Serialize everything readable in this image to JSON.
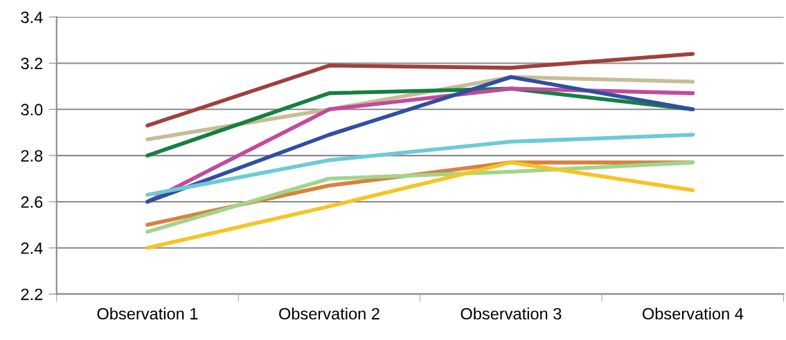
{
  "chart_data": {
    "type": "line",
    "categories": [
      "Observation 1",
      "Observation 2",
      "Observation 3",
      "Observation 4"
    ],
    "ylim": [
      2.2,
      3.4
    ],
    "yticks": [
      {
        "value": 2.2,
        "label": "2.2"
      },
      {
        "value": 2.4,
        "label": "2.4"
      },
      {
        "value": 2.6,
        "label": "2.6"
      },
      {
        "value": 2.8,
        "label": "2.8"
      },
      {
        "value": 3.0,
        "label": "3.0"
      },
      {
        "value": 3.2,
        "label": "3.2"
      },
      {
        "value": 3.4,
        "label": "3.4"
      }
    ],
    "grid": "y",
    "marker": "none",
    "line_style": "solid",
    "legend": false,
    "series": [
      {
        "color": "#a0403c",
        "values": [
          2.93,
          3.19,
          3.18,
          3.24
        ]
      },
      {
        "color": "#c6bd96",
        "values": [
          2.87,
          3.0,
          3.14,
          3.12
        ]
      },
      {
        "color": "#158040",
        "values": [
          2.8,
          3.07,
          3.09,
          3.0
        ]
      },
      {
        "color": "#c24a9c",
        "values": [
          2.6,
          3.0,
          3.09,
          3.07
        ]
      },
      {
        "color": "#2f4fa2",
        "values": [
          2.6,
          2.89,
          3.14,
          3.0
        ]
      },
      {
        "color": "#6ccad6",
        "values": [
          2.63,
          2.78,
          2.86,
          2.89
        ]
      },
      {
        "color": "#d9823c",
        "values": [
          2.5,
          2.67,
          2.77,
          2.77
        ]
      },
      {
        "color": "#a3d48c",
        "values": [
          2.47,
          2.7,
          2.73,
          2.77
        ]
      },
      {
        "color": "#f5c425",
        "values": [
          2.4,
          2.58,
          2.77,
          2.65
        ]
      }
    ]
  }
}
